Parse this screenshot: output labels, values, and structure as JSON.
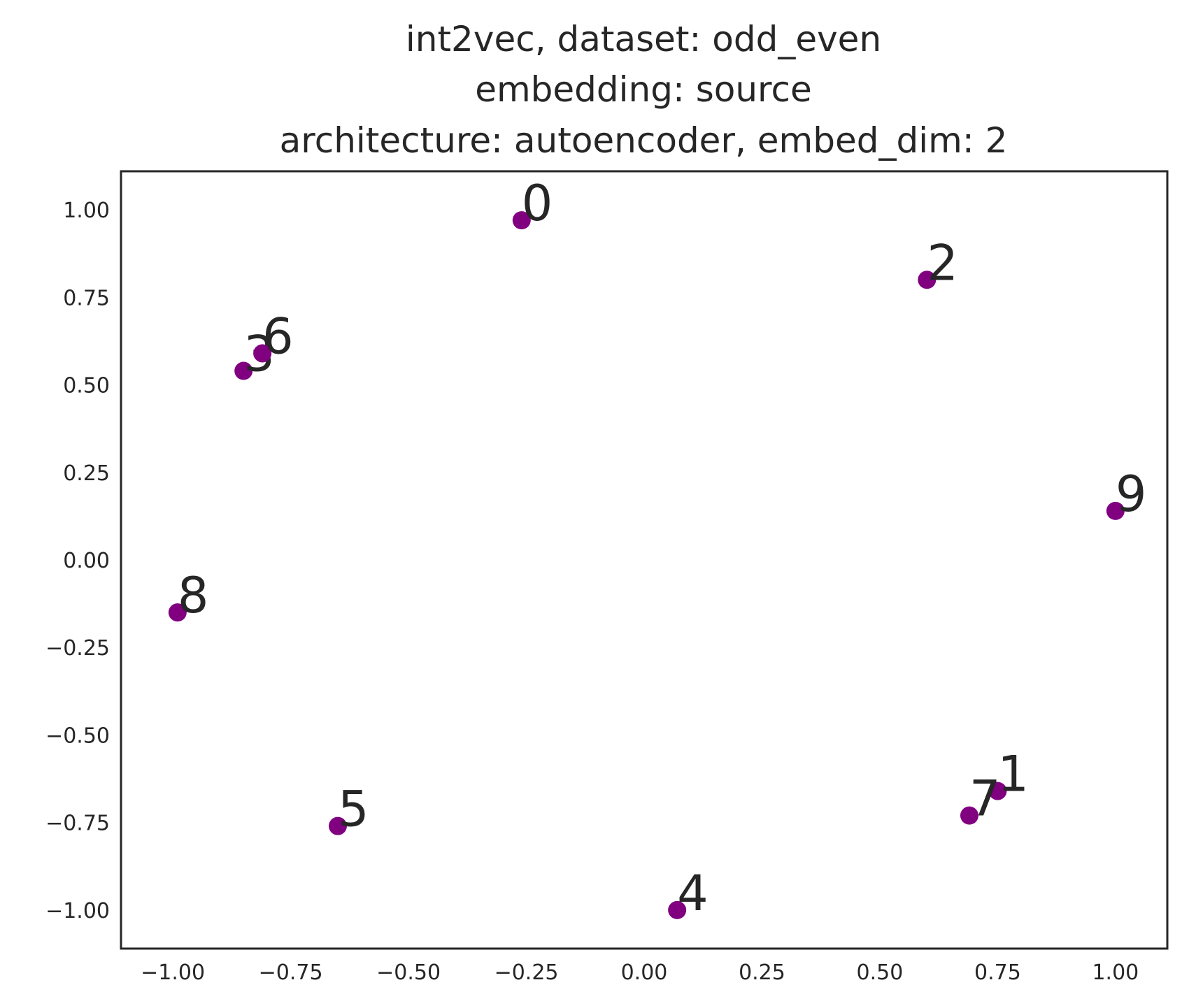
{
  "chart_data": {
    "type": "scatter",
    "title_lines": [
      "int2vec, dataset: odd_even",
      "embedding: source",
      "architecture: autoencoder, embed_dim: 2"
    ],
    "xlabel": "",
    "ylabel": "",
    "xlim": [
      -1.11,
      1.11
    ],
    "ylim": [
      -1.11,
      1.11
    ],
    "x_ticks": [
      -1.0,
      -0.75,
      -0.5,
      -0.25,
      0.0,
      0.25,
      0.5,
      0.75,
      1.0
    ],
    "y_ticks": [
      -1.0,
      -0.75,
      -0.5,
      -0.25,
      0.0,
      0.25,
      0.5,
      0.75,
      1.0
    ],
    "x_tick_labels": [
      "−1.00",
      "−0.75",
      "−0.50",
      "−0.25",
      "0.00",
      "0.25",
      "0.50",
      "0.75",
      "1.00"
    ],
    "y_tick_labels": [
      "−1.00",
      "−0.75",
      "−0.50",
      "−0.25",
      "0.00",
      "0.25",
      "0.50",
      "0.75",
      "1.00"
    ],
    "grid": false,
    "marker_color": "#800080",
    "points": [
      {
        "label": "0",
        "x": -0.26,
        "y": 0.97
      },
      {
        "label": "1",
        "x": 0.75,
        "y": -0.66
      },
      {
        "label": "2",
        "x": 0.6,
        "y": 0.8
      },
      {
        "label": "3",
        "x": -0.85,
        "y": 0.54
      },
      {
        "label": "4",
        "x": 0.07,
        "y": -1.0
      },
      {
        "label": "5",
        "x": -0.65,
        "y": -0.76
      },
      {
        "label": "6",
        "x": -0.81,
        "y": 0.59
      },
      {
        "label": "7",
        "x": 0.69,
        "y": -0.73
      },
      {
        "label": "8",
        "x": -0.99,
        "y": -0.15
      },
      {
        "label": "9",
        "x": 1.0,
        "y": 0.14
      }
    ]
  }
}
